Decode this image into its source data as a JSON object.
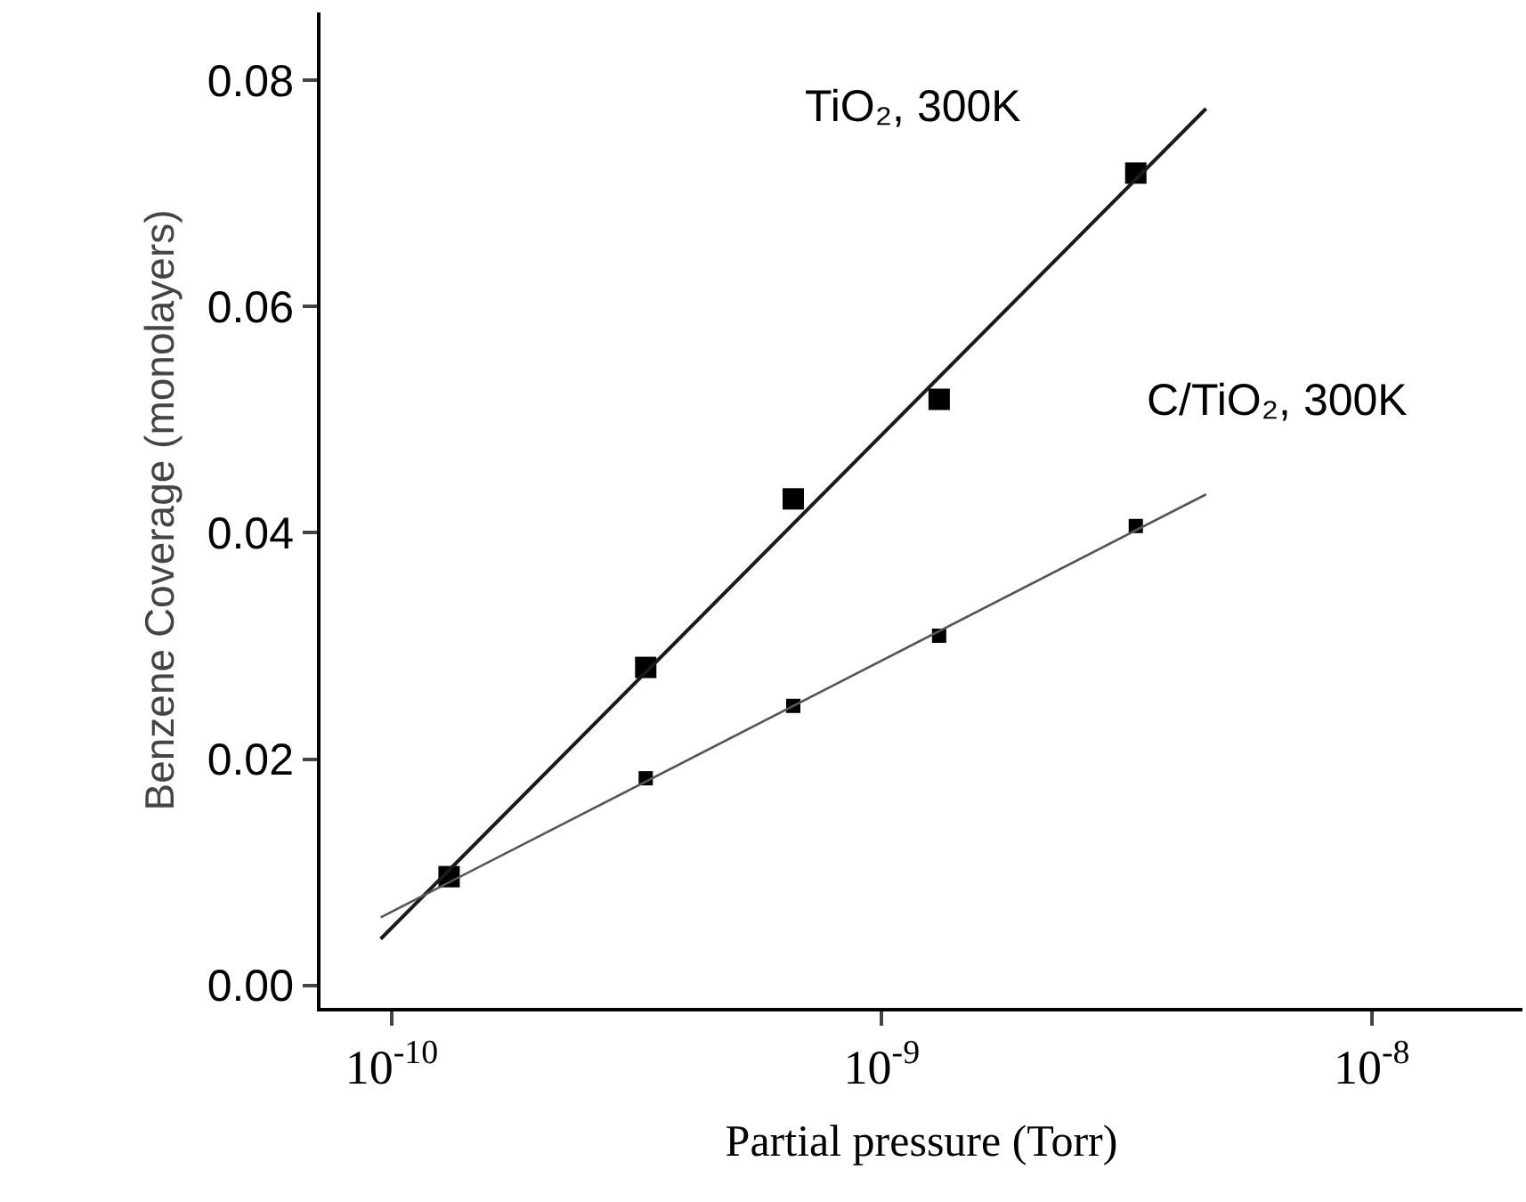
{
  "chart_data": {
    "type": "scatter",
    "xlabel": "Partial pressure (Torr)",
    "ylabel": "Benzene Coverage (monolayers)",
    "log": "x",
    "marker": "square",
    "grid": false,
    "legend": false,
    "xlim": [
      7.16e-11,
      2.03e-08
    ],
    "xticks": [
      {
        "value": 1e-10,
        "label": "10$^{-10}$"
      },
      {
        "value": 1e-09,
        "label": "10$^{-9}$"
      },
      {
        "value": 1e-08,
        "label": "10$^{-8}$"
      }
    ],
    "ylim": [
      -0.002,
      0.086
    ],
    "yticks": [
      {
        "value": 0,
        "label": "0.00"
      },
      {
        "value": 0.02,
        "label": "0.02"
      },
      {
        "value": 0.04,
        "label": "0.04"
      },
      {
        "value": 0.06,
        "label": "0.06"
      },
      {
        "value": 0.08,
        "label": "0.08"
      }
    ],
    "series": [
      {
        "name": "TiO₂, 300K",
        "color": "#000000",
        "x": [
          1.31e-10,
          3.3e-10,
          6.6e-10,
          1.31e-09,
          3.3e-09
        ],
        "values": [
          0.0096,
          0.0281,
          0.043,
          0.0518,
          0.0718
        ]
      },
      {
        "name": "C/TiO₂, 300K",
        "color": "#000000",
        "x": [
          null,
          3.3e-10,
          6.6e-10,
          1.31e-09,
          3.3e-09
        ],
        "values": [
          null,
          0.0183,
          0.0247,
          0.0309,
          0.0406
        ]
      },
      {
        "type": "line",
        "marker": "none",
        "color": "#1a1a1a",
        "x": [
          9.5e-11,
          4.59e-09
        ],
        "values": [
          0.0041,
          0.0775
        ]
      },
      {
        "type": "line",
        "marker": "none",
        "color": "#555555",
        "x": [
          9.5e-11,
          4.59e-09
        ],
        "values": [
          0.006,
          0.0434
        ]
      }
    ]
  }
}
